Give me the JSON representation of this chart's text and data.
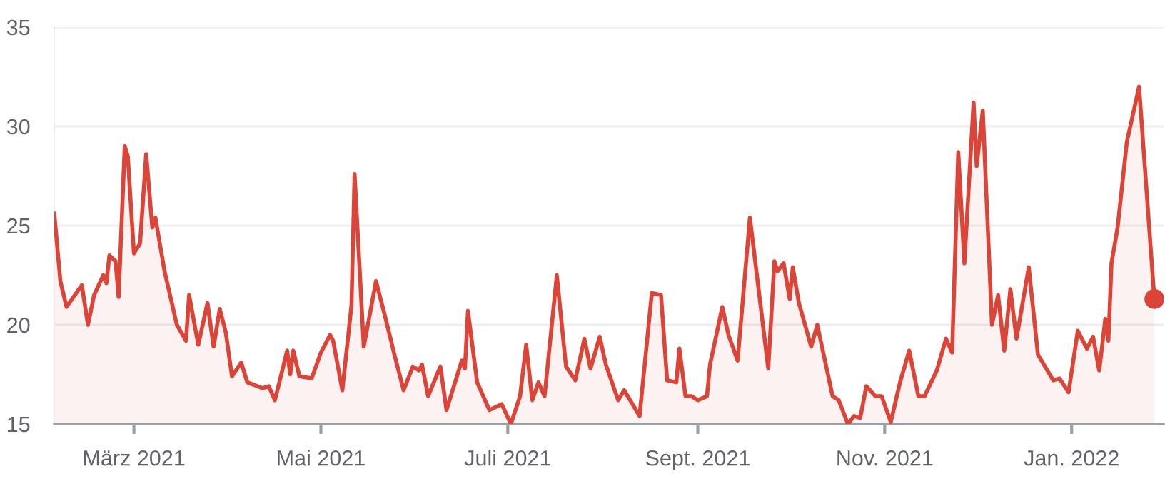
{
  "chart_data": {
    "type": "area",
    "color": "#db4437",
    "x": [
      "2021-02-03",
      "2021-02-05",
      "2021-02-07",
      "2021-02-12",
      "2021-02-14",
      "2021-02-16",
      "2021-02-19",
      "2021-02-20",
      "2021-02-21",
      "2021-02-23",
      "2021-02-24",
      "2021-02-26",
      "2021-02-27",
      "2021-03-01",
      "2021-03-03",
      "2021-03-05",
      "2021-03-07",
      "2021-03-08",
      "2021-03-11",
      "2021-03-15",
      "2021-03-18",
      "2021-03-19",
      "2021-03-22",
      "2021-03-25",
      "2021-03-27",
      "2021-03-29",
      "2021-03-31",
      "2021-04-02",
      "2021-04-05",
      "2021-04-07",
      "2021-04-12",
      "2021-04-14",
      "2021-04-16",
      "2021-04-20",
      "2021-04-21",
      "2021-04-22",
      "2021-04-24",
      "2021-04-28",
      "2021-05-01",
      "2021-05-04",
      "2021-05-05",
      "2021-05-08",
      "2021-05-11",
      "2021-05-12",
      "2021-05-15",
      "2021-05-19",
      "2021-05-22",
      "2021-05-25",
      "2021-05-28",
      "2021-05-31",
      "2021-06-02",
      "2021-06-03",
      "2021-06-05",
      "2021-06-09",
      "2021-06-11",
      "2021-06-16",
      "2021-06-17",
      "2021-06-18",
      "2021-06-21",
      "2021-06-25",
      "2021-06-29",
      "2021-07-02",
      "2021-07-05",
      "2021-07-07",
      "2021-07-09",
      "2021-07-11",
      "2021-07-13",
      "2021-07-17",
      "2021-07-20",
      "2021-07-23",
      "2021-07-26",
      "2021-07-28",
      "2021-07-31",
      "2021-08-02",
      "2021-08-06",
      "2021-08-08",
      "2021-08-13",
      "2021-08-17",
      "2021-08-20",
      "2021-08-22",
      "2021-08-25",
      "2021-08-26",
      "2021-08-28",
      "2021-08-30",
      "2021-09-01",
      "2021-09-04",
      "2021-09-05",
      "2021-09-09",
      "2021-09-11",
      "2021-09-14",
      "2021-09-18",
      "2021-09-24",
      "2021-09-26",
      "2021-09-27",
      "2021-09-29",
      "2021-10-01",
      "2021-10-02",
      "2021-10-04",
      "2021-10-08",
      "2021-10-10",
      "2021-10-15",
      "2021-10-17",
      "2021-10-20",
      "2021-10-22",
      "2021-10-24",
      "2021-10-26",
      "2021-10-29",
      "2021-10-31",
      "2021-11-03",
      "2021-11-06",
      "2021-11-09",
      "2021-11-12",
      "2021-11-14",
      "2021-11-18",
      "2021-11-21",
      "2021-11-23",
      "2021-11-25",
      "2021-11-27",
      "2021-11-30",
      "2021-12-01",
      "2021-12-03",
      "2021-12-06",
      "2021-12-08",
      "2021-12-10",
      "2021-12-12",
      "2021-12-14",
      "2021-12-18",
      "2021-12-21",
      "2021-12-26",
      "2021-12-28",
      "2021-12-31",
      "2022-01-03",
      "2022-01-06",
      "2022-01-08",
      "2022-01-10",
      "2022-01-12",
      "2022-01-13",
      "2022-01-14",
      "2022-01-16",
      "2022-01-19",
      "2022-01-23",
      "2022-01-28"
    ],
    "values": [
      25.6,
      22.2,
      20.9,
      22.0,
      20.0,
      21.5,
      22.5,
      22.1,
      23.5,
      23.2,
      21.4,
      29.0,
      28.5,
      23.6,
      24.1,
      28.6,
      24.9,
      25.4,
      22.7,
      20.0,
      19.2,
      21.5,
      19.0,
      21.1,
      18.9,
      20.8,
      19.6,
      17.4,
      18.1,
      17.1,
      16.8,
      16.9,
      16.2,
      18.7,
      17.5,
      18.7,
      17.4,
      17.3,
      18.6,
      19.5,
      19.2,
      16.7,
      21.0,
      27.6,
      18.9,
      22.2,
      20.4,
      18.5,
      16.7,
      17.9,
      17.7,
      18.0,
      16.4,
      17.9,
      15.7,
      18.2,
      17.8,
      20.7,
      17.1,
      15.7,
      16.0,
      15.0,
      16.4,
      19.0,
      16.2,
      17.1,
      16.4,
      22.5,
      17.9,
      17.2,
      19.3,
      17.8,
      19.4,
      18.0,
      16.2,
      16.7,
      15.4,
      21.6,
      21.5,
      17.2,
      17.1,
      18.8,
      16.4,
      16.4,
      16.2,
      16.4,
      18.0,
      20.9,
      19.5,
      18.2,
      25.4,
      17.8,
      23.2,
      22.7,
      23.1,
      21.3,
      22.9,
      21.1,
      18.9,
      20.0,
      16.4,
      16.2,
      15.0,
      15.4,
      15.3,
      16.9,
      16.4,
      16.4,
      15.1,
      17.1,
      18.7,
      16.4,
      16.4,
      17.7,
      19.3,
      18.6,
      28.7,
      23.1,
      31.2,
      28.0,
      30.8,
      20.0,
      21.5,
      18.7,
      21.8,
      19.3,
      22.9,
      18.5,
      17.2,
      17.3,
      16.6,
      19.7,
      18.8,
      19.4,
      17.7,
      20.3,
      19.2,
      23.1,
      24.9,
      29.2,
      32.0,
      21.3
    ],
    "xlim": [
      "2021-02-03",
      "2022-01-31"
    ],
    "xticks": [
      {
        "value": "2021-03-01",
        "label": "März 2021"
      },
      {
        "value": "2021-05-01",
        "label": "Mai 2021"
      },
      {
        "value": "2021-07-01",
        "label": "Juli 2021"
      },
      {
        "value": "2021-09-01",
        "label": "Sept. 2021"
      },
      {
        "value": "2021-11-01",
        "label": "Nov. 2021"
      },
      {
        "value": "2022-01-01",
        "label": "Jan. 2022"
      }
    ],
    "ylim": [
      15,
      35
    ],
    "yticks": [
      15,
      20,
      25,
      30,
      35
    ],
    "grid": "y"
  }
}
